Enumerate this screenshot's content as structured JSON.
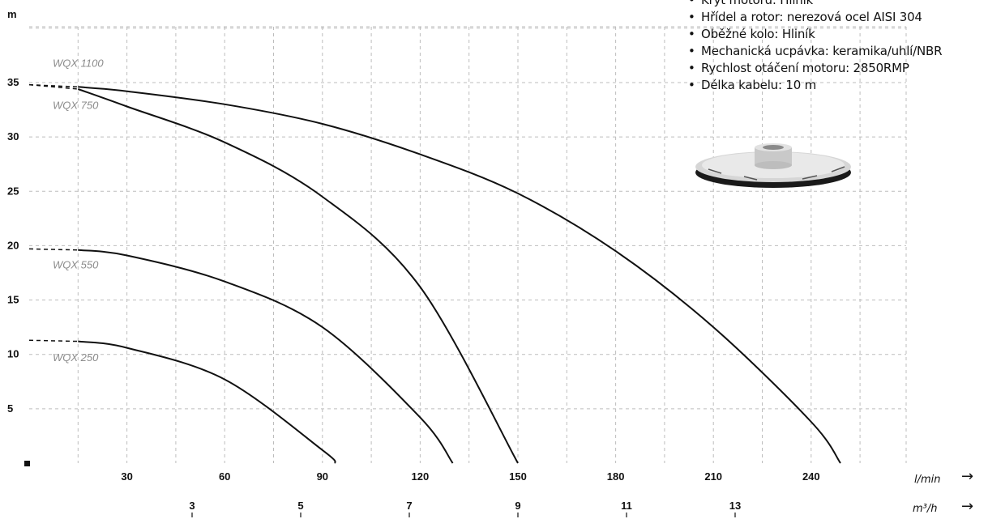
{
  "chart_data": {
    "type": "line",
    "y_axis_label": "m",
    "y_ticks": [
      5,
      10,
      15,
      20,
      25,
      30,
      35
    ],
    "y_range": [
      0,
      42
    ],
    "x_ticks": [
      30,
      60,
      90,
      120,
      150,
      180,
      210,
      240
    ],
    "x_range": [
      0,
      270
    ],
    "x_unit": "l/min",
    "secondary_x_ticks": [
      3,
      5,
      7,
      9,
      11,
      13
    ],
    "secondary_x_unit": "m³/h",
    "grid": true,
    "series": [
      {
        "name": "WQX 1100",
        "points": [
          [
            0,
            34.8
          ],
          [
            15,
            34.6
          ],
          [
            30,
            34.2
          ],
          [
            60,
            33
          ],
          [
            90,
            31.2
          ],
          [
            120,
            28.4
          ],
          [
            150,
            24.8
          ],
          [
            180,
            19.5
          ],
          [
            210,
            12.5
          ],
          [
            240,
            3.8
          ],
          [
            249,
            0
          ]
        ]
      },
      {
        "name": "WQX 750",
        "points": [
          [
            0,
            34.8
          ],
          [
            15,
            34.4
          ],
          [
            30,
            32.8
          ],
          [
            60,
            29.5
          ],
          [
            90,
            24.5
          ],
          [
            120,
            16.2
          ],
          [
            150,
            0
          ]
        ]
      },
      {
        "name": "WQX 550",
        "points": [
          [
            0,
            19.7
          ],
          [
            15,
            19.6
          ],
          [
            30,
            19.1
          ],
          [
            60,
            16.7
          ],
          [
            90,
            12.5
          ],
          [
            120,
            4.2
          ],
          [
            130,
            0
          ]
        ]
      },
      {
        "name": "WQX 250",
        "points": [
          [
            0,
            11.3
          ],
          [
            15,
            11.2
          ],
          [
            30,
            10.6
          ],
          [
            60,
            7.7
          ],
          [
            90,
            1.2
          ],
          [
            94,
            0
          ]
        ]
      }
    ]
  },
  "specs": {
    "items": [
      "Kryt motoru: Hliník",
      "Hřídel a rotor: nerezová ocel AISI 304",
      "Oběžné kolo: Hliník",
      "Mechanická ucpávka: keramika/uhlí/NBR",
      "Rychlost otáčení motoru: 2850RMP",
      "Délka kabelu: 10 m"
    ]
  }
}
